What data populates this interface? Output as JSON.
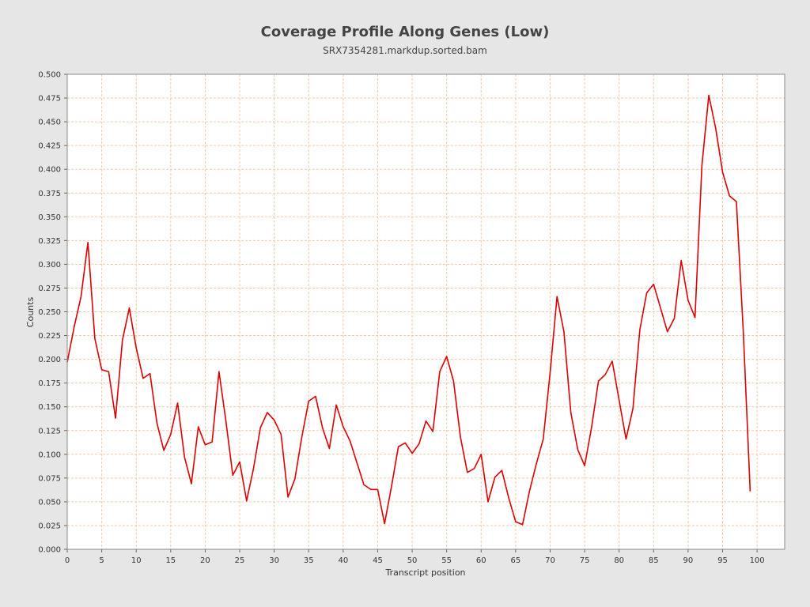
{
  "chart_data": {
    "type": "line",
    "title": "Coverage Profile Along Genes (Low)",
    "subtitle": "SRX7354281.markdup.sorted.bam",
    "xlabel": "Transcript position",
    "ylabel": "Counts",
    "xlim": [
      0,
      104
    ],
    "ylim": [
      0,
      0.5
    ],
    "xticks": [
      0,
      5,
      10,
      15,
      20,
      25,
      30,
      35,
      40,
      45,
      50,
      55,
      60,
      65,
      70,
      75,
      80,
      85,
      90,
      95,
      100
    ],
    "yticks": [
      0.0,
      0.025,
      0.05,
      0.075,
      0.1,
      0.125,
      0.15,
      0.175,
      0.2,
      0.225,
      0.25,
      0.275,
      0.3,
      0.325,
      0.35,
      0.375,
      0.4,
      0.425,
      0.45,
      0.475,
      0.5
    ],
    "grid": true,
    "line_color": "#dd0000",
    "grid_color": "#f5c9a8",
    "background_color": "#ffffff",
    "series": [
      {
        "x": [
          0,
          1,
          2,
          3,
          4,
          5,
          6,
          7,
          8,
          9,
          10,
          11,
          12,
          13,
          14,
          15,
          16,
          17,
          18,
          19,
          20,
          21,
          22,
          23,
          24,
          25,
          26,
          27,
          28,
          29,
          30,
          31,
          32,
          33,
          34,
          35,
          36,
          37,
          38,
          39,
          40,
          41,
          42,
          43,
          44,
          45,
          46,
          47,
          48,
          49,
          50,
          51,
          52,
          53,
          54,
          55,
          56,
          57,
          58,
          59,
          60,
          61,
          62,
          63,
          64,
          65,
          66,
          67,
          68,
          69,
          70,
          71,
          72,
          73,
          74,
          75,
          76,
          77,
          78,
          79,
          80,
          81,
          82,
          83,
          84,
          85,
          86,
          87,
          88,
          89,
          90,
          91,
          92,
          93,
          94,
          95,
          96,
          97,
          98,
          99
        ],
        "values": [
          0.197,
          0.234,
          0.266,
          0.323,
          0.222,
          0.189,
          0.187,
          0.138,
          0.22,
          0.254,
          0.212,
          0.18,
          0.185,
          0.133,
          0.104,
          0.121,
          0.154,
          0.097,
          0.069,
          0.129,
          0.11,
          0.113,
          0.187,
          0.135,
          0.078,
          0.092,
          0.051,
          0.085,
          0.128,
          0.144,
          0.136,
          0.121,
          0.055,
          0.074,
          0.118,
          0.156,
          0.161,
          0.128,
          0.106,
          0.152,
          0.129,
          0.114,
          0.091,
          0.068,
          0.063,
          0.063,
          0.027,
          0.066,
          0.108,
          0.112,
          0.101,
          0.111,
          0.135,
          0.124,
          0.187,
          0.203,
          0.177,
          0.118,
          0.081,
          0.085,
          0.1,
          0.05,
          0.076,
          0.083,
          0.054,
          0.029,
          0.026,
          0.061,
          0.09,
          0.116,
          0.186,
          0.266,
          0.229,
          0.144,
          0.105,
          0.088,
          0.128,
          0.177,
          0.184,
          0.198,
          0.157,
          0.116,
          0.148,
          0.231,
          0.27,
          0.279,
          0.254,
          0.229,
          0.243,
          0.304,
          0.262,
          0.244,
          0.404,
          0.478,
          0.443,
          0.397,
          0.372,
          0.366,
          0.229,
          0.061
        ]
      }
    ]
  }
}
